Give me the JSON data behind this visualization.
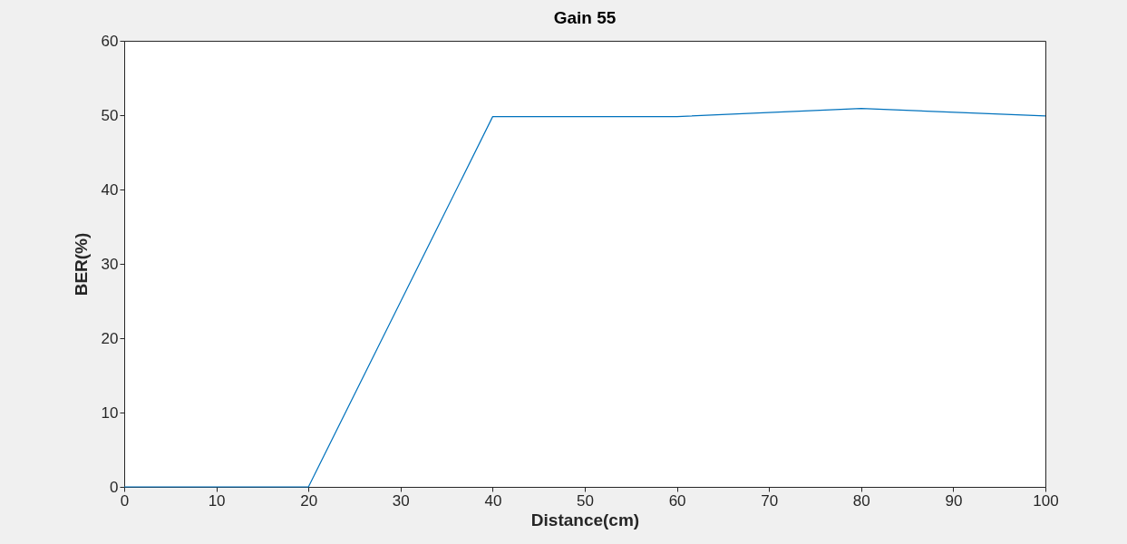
{
  "chart_data": {
    "type": "line",
    "title": "Gain 55",
    "xlabel": "Distance(cm)",
    "ylabel": "BER(%)",
    "x": [
      0,
      20,
      40,
      60,
      80,
      100
    ],
    "series": [
      {
        "color": "#0072bd",
        "values": [
          0,
          0,
          49.8,
          49.8,
          50.9,
          49.9
        ]
      }
    ],
    "xlim": [
      0,
      100
    ],
    "xticks": [
      0,
      10,
      20,
      30,
      40,
      50,
      60,
      70,
      80,
      90,
      100
    ],
    "ylim": [
      0,
      60
    ],
    "yticks": [
      0,
      10,
      20,
      30,
      40,
      50,
      60
    ],
    "grid": false,
    "marker": "none",
    "line_style": "solid"
  }
}
